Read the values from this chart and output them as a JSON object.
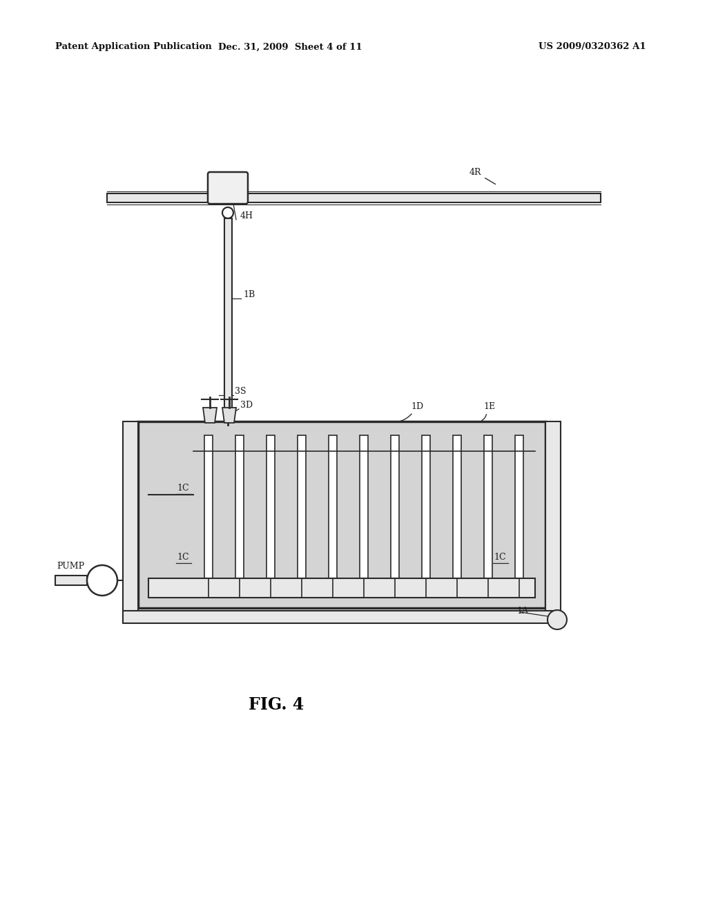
{
  "background_color": "#ffffff",
  "header_left": "Patent Application Publication",
  "header_center": "Dec. 31, 2009  Sheet 4 of 11",
  "header_right": "US 2009/0320362 A1",
  "figure_label": "FIG. 4",
  "line_color": "#2a2a2a",
  "fill_color": "#d4d4d4",
  "num_panels": 11
}
